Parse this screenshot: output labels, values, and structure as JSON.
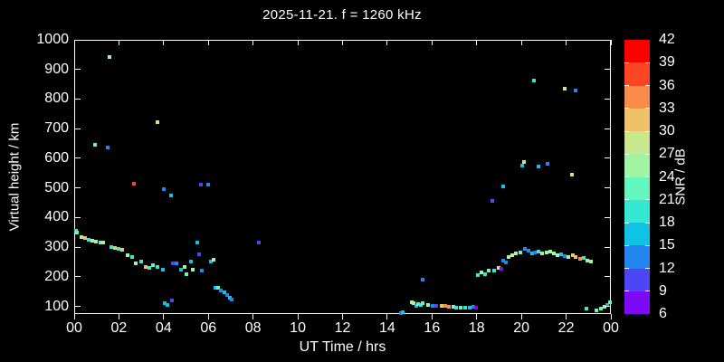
{
  "title": "2025-11-21. f = 1260 kHz",
  "colors": {
    "background": "#000000",
    "foreground": "#ffffff",
    "axis": "#ffffff"
  },
  "axes": {
    "x_label": "UT Time / hrs",
    "y_label": "Virtual height / km",
    "x_tick_labels": [
      "00",
      "02",
      "04",
      "06",
      "08",
      "10",
      "12",
      "14",
      "16",
      "18",
      "20",
      "22",
      "00"
    ],
    "y_tick_labels": [
      "1000",
      "900",
      "800",
      "700",
      "600",
      "500",
      "400",
      "300",
      "200",
      "100"
    ]
  },
  "colorbar": {
    "label": "SNR / dB",
    "tick_labels": [
      "42",
      "39",
      "36",
      "33",
      "30",
      "27",
      "24",
      "21",
      "18",
      "15",
      "12",
      "9",
      "6"
    ],
    "min": 6,
    "max": 42,
    "step": 3,
    "colors_low_to_high": [
      "#7c0af2",
      "#4e46f4",
      "#2485f0",
      "#12c2e4",
      "#34e8d4",
      "#63f7bd",
      "#a0f4a4",
      "#c8e78f",
      "#f0c169",
      "#f98c4c",
      "#fc4621",
      "#fc0000"
    ]
  },
  "chart_data": {
    "type": "scatter",
    "title": "2025-11-21. f = 1260 kHz",
    "xlabel": "UT Time / hrs",
    "ylabel": "Virtual height / km",
    "xlim": [
      0,
      24
    ],
    "ylim": [
      85,
      1000
    ],
    "x_ticks_hrs": [
      0,
      2,
      4,
      6,
      8,
      10,
      12,
      14,
      16,
      18,
      20,
      22,
      24
    ],
    "y_ticks_km": [
      100,
      200,
      300,
      400,
      500,
      600,
      700,
      800,
      900,
      1000
    ],
    "grid": false,
    "legend_position": "right-colorbar",
    "color_value": "SNR in dB, 3 dB bins from 6 to 42",
    "points_format": [
      "ut_hrs",
      "virtual_height_km",
      "snr_db"
    ],
    "points": [
      [
        0.02,
        358,
        19.5
      ],
      [
        0.1,
        352,
        22.5
      ],
      [
        0.3,
        337,
        25.5
      ],
      [
        0.45,
        334,
        31.5
      ],
      [
        0.6,
        328,
        19.5
      ],
      [
        0.78,
        324,
        25.5
      ],
      [
        0.92,
        321,
        25.5
      ],
      [
        1.12,
        318,
        22.5
      ],
      [
        1.27,
        318,
        25.5
      ],
      [
        1.6,
        304,
        19.5
      ],
      [
        1.8,
        301,
        31.5
      ],
      [
        1.95,
        298,
        19.5
      ],
      [
        2.1,
        295,
        31.5
      ],
      [
        2.35,
        276,
        25.5
      ],
      [
        2.55,
        270,
        19.5
      ],
      [
        2.72,
        250,
        25.5
      ],
      [
        2.95,
        255,
        19.5
      ],
      [
        3.15,
        237,
        31.5
      ],
      [
        3.32,
        233,
        19.5
      ],
      [
        3.5,
        242,
        22.5
      ],
      [
        3.7,
        235,
        19.5
      ],
      [
        3.92,
        227,
        16.5
      ],
      [
        4.37,
        250,
        10.5
      ],
      [
        4.54,
        250,
        13.5
      ],
      [
        4.75,
        228,
        16.5
      ],
      [
        4.91,
        235,
        25.5
      ],
      [
        4.99,
        213,
        22.5
      ],
      [
        5.18,
        254,
        16.5
      ],
      [
        5.25,
        228,
        25.5
      ],
      [
        5.45,
        320,
        16.5
      ],
      [
        5.54,
        279,
        10.5
      ],
      [
        5.68,
        225,
        13.5
      ],
      [
        6.06,
        256,
        16.5
      ],
      [
        6.19,
        262,
        25.5
      ],
      [
        6.26,
        167,
        16.5
      ],
      [
        6.39,
        167,
        22.5
      ],
      [
        6.53,
        157,
        13.5
      ],
      [
        6.66,
        152,
        16.5
      ],
      [
        6.8,
        142,
        13.5
      ],
      [
        6.93,
        134,
        16.5
      ],
      [
        7.0,
        127,
        13.5
      ],
      [
        3.99,
        113,
        16.5
      ],
      [
        4.13,
        109,
        16.5
      ],
      [
        4.34,
        123,
        10.5
      ],
      [
        1.54,
        945,
        25.5
      ],
      [
        3.67,
        725,
        28.5
      ],
      [
        0.9,
        650,
        22.5
      ],
      [
        1.44,
        640,
        13.5
      ],
      [
        2.63,
        517,
        37.5
      ],
      [
        3.98,
        500,
        13.5
      ],
      [
        4.3,
        478,
        16.5
      ],
      [
        5.61,
        513,
        10.5
      ],
      [
        5.96,
        515,
        13.5
      ],
      [
        8.2,
        320,
        10.5
      ],
      [
        20.5,
        865,
        19.5
      ],
      [
        21.9,
        838,
        28.5
      ],
      [
        22.4,
        832,
        13.5
      ],
      [
        18.65,
        460,
        10.5
      ],
      [
        19.14,
        508,
        16.5
      ],
      [
        19.98,
        580,
        16.5
      ],
      [
        20.08,
        590,
        28.5
      ],
      [
        20.72,
        575,
        16.5
      ],
      [
        21.13,
        585,
        13.5
      ],
      [
        22.2,
        549,
        28.5
      ],
      [
        14.55,
        81,
        13.5
      ],
      [
        14.67,
        85,
        16.5
      ],
      [
        15.07,
        118,
        25.5
      ],
      [
        15.13,
        115,
        28.5
      ],
      [
        15.26,
        106,
        16.5
      ],
      [
        15.34,
        111,
        22.5
      ],
      [
        15.47,
        108,
        19.5
      ],
      [
        15.55,
        114,
        22.5
      ],
      [
        15.8,
        109,
        25.5
      ],
      [
        16.0,
        106,
        13.5
      ],
      [
        16.15,
        106,
        10.5
      ],
      [
        16.38,
        104,
        31.5
      ],
      [
        16.55,
        104,
        34.5
      ],
      [
        16.72,
        102,
        34.5
      ],
      [
        16.9,
        101,
        25.5
      ],
      [
        17.05,
        99,
        19.5
      ],
      [
        17.25,
        99,
        22.5
      ],
      [
        17.45,
        98,
        19.5
      ],
      [
        17.66,
        98,
        16.5
      ],
      [
        17.8,
        101,
        13.5
      ],
      [
        17.93,
        99,
        7.5
      ],
      [
        15.53,
        193,
        13.5
      ],
      [
        18.02,
        208,
        19.5
      ],
      [
        18.16,
        218,
        25.5
      ],
      [
        18.33,
        213,
        19.5
      ],
      [
        18.5,
        223,
        22.5
      ],
      [
        18.74,
        225,
        19.5
      ],
      [
        18.95,
        233,
        28.5
      ],
      [
        19.05,
        230,
        7.5
      ],
      [
        19.14,
        259,
        13.5
      ],
      [
        19.25,
        252,
        13.5
      ],
      [
        19.4,
        269,
        25.5
      ],
      [
        19.55,
        276,
        28.5
      ],
      [
        19.72,
        282,
        25.5
      ],
      [
        19.9,
        286,
        22.5
      ],
      [
        20.12,
        297,
        13.5
      ],
      [
        20.26,
        292,
        13.5
      ],
      [
        20.42,
        282,
        16.5
      ],
      [
        20.58,
        284,
        13.5
      ],
      [
        20.72,
        289,
        19.5
      ],
      [
        20.9,
        282,
        25.5
      ],
      [
        21.07,
        286,
        25.5
      ],
      [
        21.23,
        289,
        25.5
      ],
      [
        21.4,
        282,
        25.5
      ],
      [
        21.57,
        276,
        25.5
      ],
      [
        21.75,
        279,
        16.5
      ],
      [
        21.9,
        274,
        13.5
      ],
      [
        22.06,
        269,
        25.5
      ],
      [
        22.25,
        277,
        31.5
      ],
      [
        22.4,
        271,
        31.5
      ],
      [
        22.58,
        264,
        34.5
      ],
      [
        22.74,
        267,
        19.5
      ],
      [
        22.9,
        258,
        25.5
      ],
      [
        23.06,
        256,
        25.5
      ],
      [
        22.85,
        96,
        19.5
      ],
      [
        23.3,
        89,
        22.5
      ],
      [
        23.5,
        96,
        22.5
      ],
      [
        23.66,
        103,
        25.5
      ],
      [
        23.8,
        109,
        16.5
      ],
      [
        23.93,
        116,
        22.5
      ]
    ]
  }
}
